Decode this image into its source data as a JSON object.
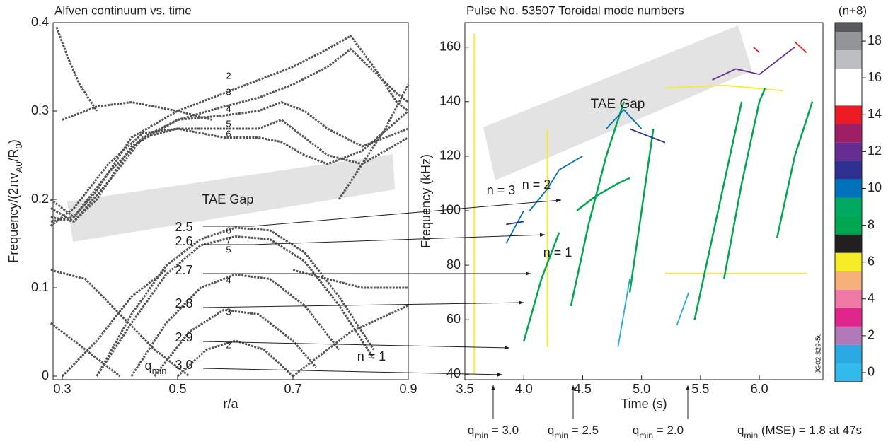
{
  "chart_data": [
    {
      "type": "line",
      "title": "Alfven continuum vs. time",
      "x_label": "r/a",
      "y_label": [
        "Frequency/(2πv",
        "A0",
        "/R",
        "0",
        ")"
      ],
      "xlim": [
        0.284,
        0.9
      ],
      "ylim": [
        -0.004,
        0.4
      ],
      "xticks": [
        0.3,
        0.5,
        0.7,
        0.9
      ],
      "yticks": [
        0,
        0.1,
        0.2,
        0.3,
        0.4
      ],
      "series": [
        {
          "color": "#555555",
          "x": [
            0.29,
            0.31,
            0.33,
            0.36
          ],
          "values": [
            0.395,
            0.36,
            0.33,
            0.3
          ]
        },
        {
          "color": "#555555",
          "x": [
            0.28,
            0.32,
            0.36,
            0.42,
            0.5,
            0.58,
            0.64,
            0.7,
            0.76,
            0.8,
            0.84,
            0.88,
            0.9
          ],
          "values": [
            0.2,
            0.18,
            0.21,
            0.27,
            0.3,
            0.32,
            0.335,
            0.35,
            0.37,
            0.385,
            0.35,
            0.31,
            0.3
          ]
        },
        {
          "color": "#555555",
          "x": [
            0.28,
            0.32,
            0.36,
            0.42,
            0.5,
            0.58,
            0.64,
            0.7,
            0.76,
            0.8,
            0.84,
            0.88,
            0.9
          ],
          "values": [
            0.19,
            0.175,
            0.2,
            0.26,
            0.29,
            0.305,
            0.315,
            0.33,
            0.35,
            0.37,
            0.345,
            0.32,
            0.31
          ]
        },
        {
          "color": "#555555",
          "x": [
            0.28,
            0.32,
            0.38,
            0.44,
            0.5,
            0.58,
            0.64,
            0.68,
            0.72,
            0.76,
            0.82,
            0.9
          ],
          "values": [
            0.18,
            0.175,
            0.22,
            0.27,
            0.29,
            0.295,
            0.3,
            0.31,
            0.3,
            0.28,
            0.26,
            0.28
          ]
        },
        {
          "color": "#555555",
          "x": [
            0.28,
            0.32,
            0.38,
            0.44,
            0.5,
            0.58,
            0.64,
            0.68,
            0.72,
            0.76,
            0.82,
            0.9
          ],
          "values": [
            0.175,
            0.18,
            0.23,
            0.27,
            0.28,
            0.28,
            0.28,
            0.29,
            0.27,
            0.25,
            0.24,
            0.27
          ]
        },
        {
          "color": "#555555",
          "x": [
            0.28,
            0.32,
            0.38,
            0.44,
            0.5,
            0.58,
            0.64,
            0.68,
            0.72,
            0.76,
            0.82,
            0.9
          ],
          "values": [
            0.17,
            0.19,
            0.24,
            0.275,
            0.28,
            0.27,
            0.27,
            0.265,
            0.25,
            0.24,
            0.255,
            0.3
          ]
        },
        {
          "color": "#555555",
          "x": [
            0.3,
            0.36,
            0.42,
            0.5,
            0.56
          ],
          "values": [
            0.29,
            0.305,
            0.31,
            0.3,
            0.29
          ]
        },
        {
          "color": "#555555",
          "x": [
            0.78,
            0.82,
            0.86,
            0.9
          ],
          "values": [
            0.2,
            0.24,
            0.28,
            0.33
          ]
        },
        {
          "color": "#555555",
          "x": [
            0.36,
            0.42,
            0.48,
            0.54,
            0.6,
            0.66,
            0.72,
            0.78,
            0.84
          ],
          "values": [
            0.0,
            0.07,
            0.125,
            0.155,
            0.168,
            0.165,
            0.14,
            0.09,
            0.03
          ]
        },
        {
          "color": "#555555",
          "x": [
            0.36,
            0.42,
            0.48,
            0.54,
            0.6,
            0.66,
            0.72,
            0.78,
            0.84
          ],
          "values": [
            0.0,
            0.06,
            0.115,
            0.148,
            0.158,
            0.155,
            0.13,
            0.08,
            0.02
          ]
        },
        {
          "color": "#555555",
          "x": [
            0.42,
            0.48,
            0.54,
            0.6,
            0.66,
            0.72,
            0.78
          ],
          "values": [
            0.0,
            0.06,
            0.1,
            0.115,
            0.11,
            0.08,
            0.03
          ]
        },
        {
          "color": "#555555",
          "x": [
            0.46,
            0.52,
            0.58,
            0.64,
            0.7,
            0.74
          ],
          "values": [
            0.0,
            0.05,
            0.075,
            0.07,
            0.04,
            0.01
          ]
        },
        {
          "color": "#555555",
          "x": [
            0.5,
            0.55,
            0.6,
            0.65,
            0.7
          ],
          "values": [
            0.0,
            0.03,
            0.04,
            0.03,
            0.0
          ]
        },
        {
          "color": "#555555",
          "x": [
            0.28,
            0.34,
            0.4,
            0.46,
            0.52
          ],
          "values": [
            0.12,
            0.11,
            0.07,
            0.03,
            0.0
          ]
        },
        {
          "color": "#555555",
          "x": [
            0.28,
            0.32,
            0.36,
            0.4
          ],
          "values": [
            0.06,
            0.04,
            0.02,
            0.0
          ]
        },
        {
          "color": "#555555",
          "x": [
            0.3,
            0.36,
            0.42,
            0.48
          ],
          "values": [
            0.0,
            0.04,
            0.09,
            0.12
          ]
        },
        {
          "color": "#555555",
          "x": [
            0.7,
            0.76,
            0.82,
            0.9
          ],
          "values": [
            0.12,
            0.11,
            0.1,
            0.1
          ]
        },
        {
          "color": "#555555",
          "x": [
            0.7,
            0.8,
            0.9
          ],
          "values": [
            0.0,
            0.05,
            0.08
          ]
        }
      ],
      "annotations": [
        "TAE Gap",
        "2",
        "3",
        "4",
        "5",
        "6",
        "6",
        "7",
        "5",
        "4",
        "3",
        "2",
        "2.5",
        "2.6",
        "2.7",
        "2.8",
        "2.9",
        "3.0",
        [
          "q",
          "min"
        ],
        "n = 1"
      ]
    },
    {
      "type": "line",
      "title": "Pulse No. 53507 Toroidal mode numbers",
      "x_label": "Time (s)",
      "y_label": "Frequency (kHz)",
      "xlim": [
        3.5,
        6.54
      ],
      "ylim": [
        38,
        169
      ],
      "xticks": [
        3.5,
        {
          "value": 4,
          "label": "4.0"
        },
        4.5,
        {
          "value": 5,
          "label": "5.0"
        },
        5.5,
        {
          "value": 6,
          "label": "6.0"
        }
      ],
      "yticks": [
        40,
        60,
        80,
        100,
        120,
        140,
        160
      ],
      "series": [
        {
          "color": "#f7ec28",
          "x": [
            3.58,
            3.58,
            null,
            4.2,
            4.2,
            null,
            5.2,
            5.8,
            6.4,
            null,
            5.2,
            5.7,
            6.2
          ],
          "values": [
            40,
            165,
            null,
            50,
            130,
            null,
            77,
            77,
            77,
            null,
            145,
            146,
            144
          ]
        },
        {
          "color": "#00a650",
          "x": [
            4.0,
            4.15,
            4.3,
            null,
            4.4,
            4.55,
            4.7,
            4.85,
            null,
            4.45,
            4.6,
            4.8,
            4.9,
            null,
            4.9,
            5.0,
            5.1,
            null,
            5.45,
            5.6,
            5.75,
            5.85,
            null,
            5.7,
            5.85,
            6.0,
            6.05,
            null,
            6.15,
            6.3,
            6.45
          ],
          "values": [
            52,
            75,
            92,
            null,
            65,
            95,
            120,
            140,
            null,
            100,
            105,
            110,
            112,
            null,
            70,
            100,
            130,
            null,
            60,
            90,
            120,
            140,
            null,
            75,
            110,
            140,
            145,
            null,
            90,
            120,
            140
          ]
        },
        {
          "color": "#0072bc",
          "x": [
            4.05,
            4.2,
            4.3,
            4.5,
            null,
            4.7,
            4.85,
            5.0,
            null,
            3.85,
            4.0
          ],
          "values": [
            100,
            108,
            115,
            120,
            null,
            130,
            137,
            130,
            null,
            88,
            100
          ]
        },
        {
          "color": "#2e3192",
          "x": [
            3.85,
            4.0,
            null,
            4.9,
            5.2
          ],
          "values": [
            95,
            96,
            null,
            130,
            125
          ]
        },
        {
          "color": "#29abe2",
          "x": [
            4.8,
            4.9,
            null,
            5.3,
            5.4
          ],
          "values": [
            50,
            75,
            null,
            58,
            70
          ]
        },
        {
          "color": "#662d91",
          "x": [
            5.6,
            5.8,
            6.0,
            6.3
          ],
          "values": [
            148,
            152,
            150,
            160
          ]
        },
        {
          "color": "#ed1c24",
          "x": [
            5.95,
            6.0,
            null,
            6.3,
            6.4
          ],
          "values": [
            160,
            158,
            null,
            162,
            158
          ]
        }
      ],
      "annotations": [
        "TAE Gap",
        "n = 3",
        "n = 2",
        "n = 1",
        "JG02.329-5c",
        [
          "q",
          "min",
          " = 3.0"
        ],
        [
          "q",
          "min",
          " = 2.5"
        ],
        [
          "q",
          "min",
          " = 2.0"
        ],
        [
          "q",
          "min",
          " (MSE) = 1.8 at 47s"
        ]
      ]
    },
    {
      "type": "colorbar",
      "title": "(n+8)",
      "ylim": [
        -0.5,
        19.0
      ],
      "yticks": [
        0,
        2,
        4,
        6,
        8,
        10,
        12,
        14,
        16,
        18
      ],
      "values": [
        0,
        1,
        2,
        3,
        4,
        5,
        6,
        7,
        8,
        9,
        10,
        11,
        12,
        13,
        14,
        15,
        16,
        17,
        18,
        19
      ],
      "colors": [
        "#33bbee",
        "#2aa8e0",
        "#b07ab8",
        "#e0248a",
        "#f07aa6",
        "#f6b07a",
        "#f7ec28",
        "#231f20",
        "#00a650",
        "#00a860",
        "#0072bc",
        "#2e3192",
        "#662d91",
        "#9e1f63",
        "#ed1c24",
        "#ffffff",
        "#ffffff",
        "#bcbec0",
        "#939598",
        "#58595b"
      ]
    }
  ]
}
